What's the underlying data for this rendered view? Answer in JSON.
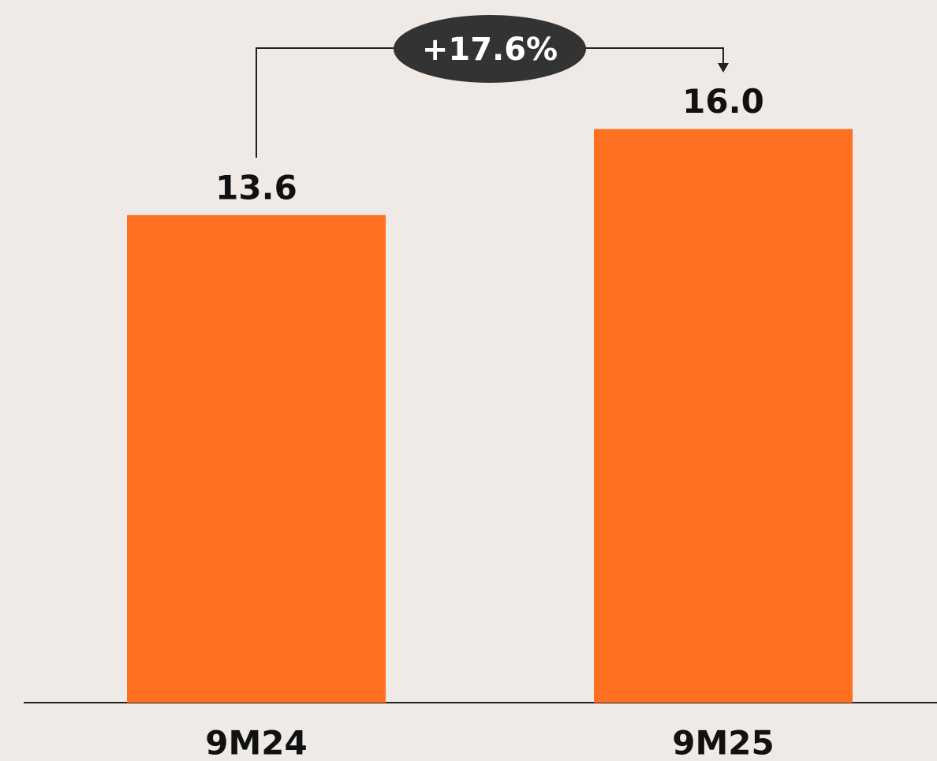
{
  "chart_data": {
    "type": "bar",
    "categories": [
      "9M24",
      "9M25"
    ],
    "values": [
      13.6,
      16.0
    ],
    "value_labels": [
      "13.6",
      "16.0"
    ],
    "color": "#ff7020",
    "ylim": [
      0,
      19.6
    ],
    "annotations": [
      "+17.6%"
    ]
  }
}
